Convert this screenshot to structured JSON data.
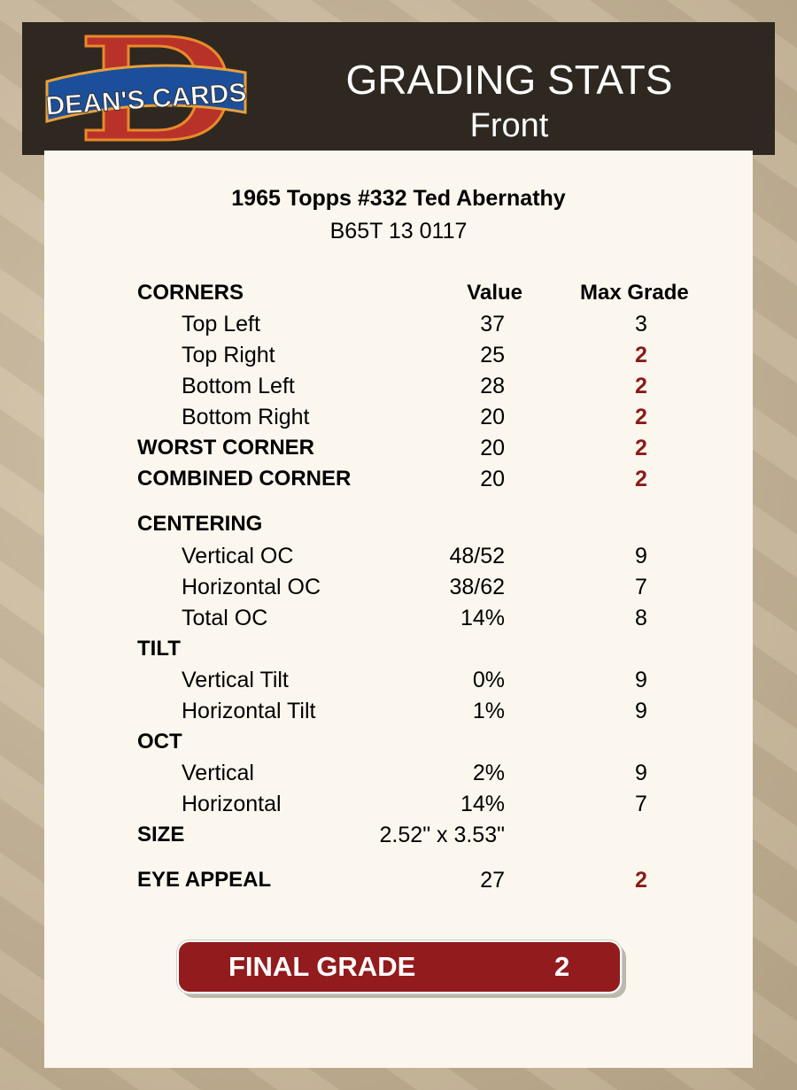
{
  "header": {
    "logo_text": "DEAN'S CARDS",
    "title": "GRADING STATS",
    "subtitle": "Front"
  },
  "card": {
    "name": "1965 Topps #332 Ted Abernathy",
    "code": "B65T 13 0117"
  },
  "columns": {
    "value": "Value",
    "max_grade": "Max Grade"
  },
  "colors": {
    "accent_red": "#8b1a1a",
    "header_bg": "#2e2820",
    "final_bg": "#921b1d"
  },
  "rows": [
    {
      "label": "CORNERS",
      "bold": true,
      "value": "",
      "grade": "",
      "header": true
    },
    {
      "label": "Top Left",
      "value": "37",
      "grade": "3"
    },
    {
      "label": "Top Right",
      "value": "25",
      "grade": "2",
      "red": true
    },
    {
      "label": "Bottom Left",
      "value": "28",
      "grade": "2",
      "red": true
    },
    {
      "label": "Bottom Right",
      "value": "20",
      "grade": "2",
      "red": true
    },
    {
      "label": "WORST CORNER",
      "bold": true,
      "value": "20",
      "grade": "2",
      "red": true
    },
    {
      "label": "COMBINED CORNER",
      "bold": true,
      "value": "20",
      "grade": "2",
      "red": true
    },
    {
      "label": "CENTERING",
      "bold": true,
      "value": "",
      "grade": ""
    },
    {
      "label": "Vertical OC",
      "value": "48/52",
      "grade": "9"
    },
    {
      "label": "Horizontal OC",
      "value": "38/62",
      "grade": "7"
    },
    {
      "label": "Total OC",
      "value": "14%",
      "grade": "8"
    },
    {
      "label": "TILT",
      "bold": true,
      "value": "",
      "grade": ""
    },
    {
      "label": "Vertical Tilt",
      "value": "0%",
      "grade": "9"
    },
    {
      "label": "Horizontal Tilt",
      "value": "1%",
      "grade": "9"
    },
    {
      "label": "OCT",
      "bold": true,
      "value": "",
      "grade": ""
    },
    {
      "label": "Vertical",
      "value": "2%",
      "grade": "9"
    },
    {
      "label": "Horizontal",
      "value": "14%",
      "grade": "7"
    },
    {
      "label": "SIZE",
      "bold": true,
      "value": "2.52\" x 3.53\"",
      "grade": ""
    },
    {
      "label": "EYE APPEAL",
      "bold": true,
      "value": "27",
      "grade": "2",
      "red": true
    }
  ],
  "final": {
    "label": "FINAL GRADE",
    "value": "2"
  }
}
